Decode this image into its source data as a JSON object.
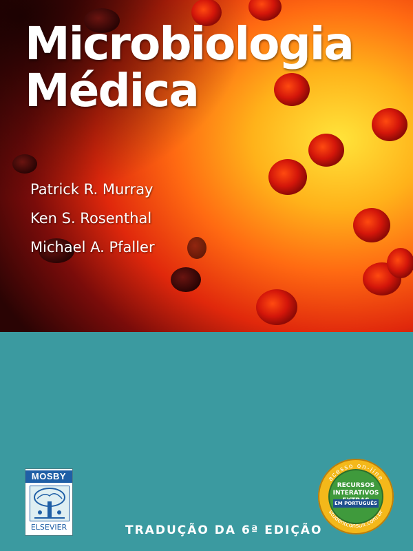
{
  "book": {
    "title_line1": "Microbiologia",
    "title_line2": "Médica",
    "authors": [
      "Patrick R. Murray",
      "Ken S. Rosenthal",
      "Michael A. Pfaller"
    ],
    "edition": "TRADUÇÃO DA 6ª EDIÇÃO"
  },
  "publisher": {
    "imprint": "MOSBY",
    "name": "ELSEVIER"
  },
  "badge": {
    "arc_top": "acesso on-line",
    "line1": "RECURSOS",
    "line2": "INTERATIVOS",
    "line3": "EXTRAS",
    "ribbon": "EM PORTUGUÊS",
    "arc_bottom": "studentconsult.com.br"
  },
  "colors": {
    "teal": "#3b9aa0",
    "badge_gold": "#f4b81a",
    "badge_green": "#3f9a3c",
    "mosby_blue": "#1f5fa6"
  }
}
